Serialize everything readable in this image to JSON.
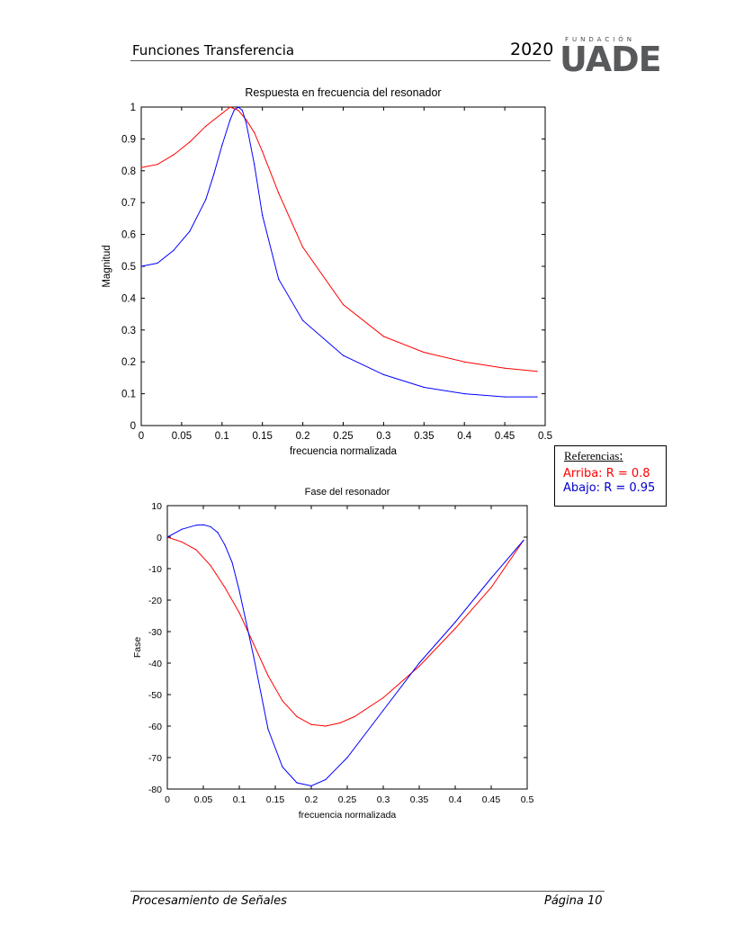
{
  "header": {
    "title": "Funciones Transferencia",
    "year": "2020",
    "logo": {
      "top": "FUNDACIÓN",
      "main": "UADE"
    }
  },
  "legend": {
    "title": "Referencias",
    "colon": ":",
    "items": [
      {
        "label": "Arriba: R = 0.8",
        "color": "#ff0000"
      },
      {
        "label": "Abajo: R = 0.95",
        "color": "#0000cc"
      }
    ]
  },
  "footer": {
    "left": "Procesamiento de Señales",
    "right": "Página 10"
  },
  "chart_data": [
    {
      "type": "line",
      "title": "Respuesta en frecuencia del resonador",
      "xlabel": "frecuencia normalizada",
      "ylabel": "Magnitud",
      "xlim": [
        0,
        0.5
      ],
      "ylim": [
        0,
        1
      ],
      "xticks": [
        0,
        0.05,
        0.1,
        0.15,
        0.2,
        0.25,
        0.3,
        0.35,
        0.4,
        0.45,
        0.5
      ],
      "yticks": [
        0,
        0.1,
        0.2,
        0.3,
        0.4,
        0.5,
        0.6,
        0.7,
        0.8,
        0.9,
        1
      ],
      "series": [
        {
          "color": "#ff0000",
          "x": [
            0,
            0.02,
            0.04,
            0.06,
            0.08,
            0.1,
            0.11,
            0.12,
            0.13,
            0.14,
            0.15,
            0.17,
            0.2,
            0.25,
            0.3,
            0.35,
            0.4,
            0.45,
            0.49
          ],
          "y": [
            0.81,
            0.82,
            0.85,
            0.89,
            0.94,
            0.98,
            1.0,
            0.99,
            0.96,
            0.92,
            0.86,
            0.73,
            0.56,
            0.38,
            0.28,
            0.23,
            0.2,
            0.18,
            0.17
          ]
        },
        {
          "color": "#0000ff",
          "x": [
            0,
            0.02,
            0.04,
            0.06,
            0.08,
            0.09,
            0.1,
            0.11,
            0.115,
            0.12,
            0.125,
            0.13,
            0.14,
            0.15,
            0.17,
            0.2,
            0.25,
            0.3,
            0.35,
            0.4,
            0.45,
            0.49
          ],
          "y": [
            0.5,
            0.51,
            0.55,
            0.61,
            0.71,
            0.79,
            0.88,
            0.96,
            0.99,
            1.0,
            0.99,
            0.95,
            0.82,
            0.66,
            0.46,
            0.33,
            0.22,
            0.16,
            0.12,
            0.1,
            0.09,
            0.09
          ]
        }
      ]
    },
    {
      "type": "line",
      "title": "Fase del resonador",
      "xlabel": "frecuencia normalizada",
      "ylabel": "Fase",
      "xlim": [
        0,
        0.5
      ],
      "ylim": [
        -80,
        10
      ],
      "xticks": [
        0,
        0.05,
        0.1,
        0.15,
        0.2,
        0.25,
        0.3,
        0.35,
        0.4,
        0.45,
        0.5
      ],
      "yticks": [
        10,
        0,
        -10,
        -20,
        -30,
        -40,
        -50,
        -60,
        -70,
        -80
      ],
      "series": [
        {
          "color": "#ff0000",
          "x": [
            0,
            0.02,
            0.04,
            0.06,
            0.08,
            0.1,
            0.12,
            0.14,
            0.16,
            0.18,
            0.2,
            0.22,
            0.24,
            0.26,
            0.3,
            0.35,
            0.4,
            0.45,
            0.495
          ],
          "y": [
            0,
            -1.5,
            -4,
            -9,
            -16,
            -24,
            -34,
            -44,
            -52,
            -57,
            -59.5,
            -60,
            -59,
            -57,
            -51,
            -41,
            -29,
            -16,
            -1
          ]
        },
        {
          "color": "#0000ff",
          "x": [
            0,
            0.02,
            0.04,
            0.05,
            0.06,
            0.07,
            0.08,
            0.09,
            0.1,
            0.12,
            0.14,
            0.16,
            0.18,
            0.2,
            0.22,
            0.25,
            0.3,
            0.35,
            0.4,
            0.45,
            0.495
          ],
          "y": [
            0,
            2.5,
            3.8,
            3.9,
            3.3,
            1.5,
            -2.5,
            -8,
            -17,
            -38,
            -61,
            -73,
            -78,
            -79,
            -77,
            -70,
            -55,
            -40,
            -27,
            -13,
            -1
          ]
        }
      ]
    }
  ]
}
